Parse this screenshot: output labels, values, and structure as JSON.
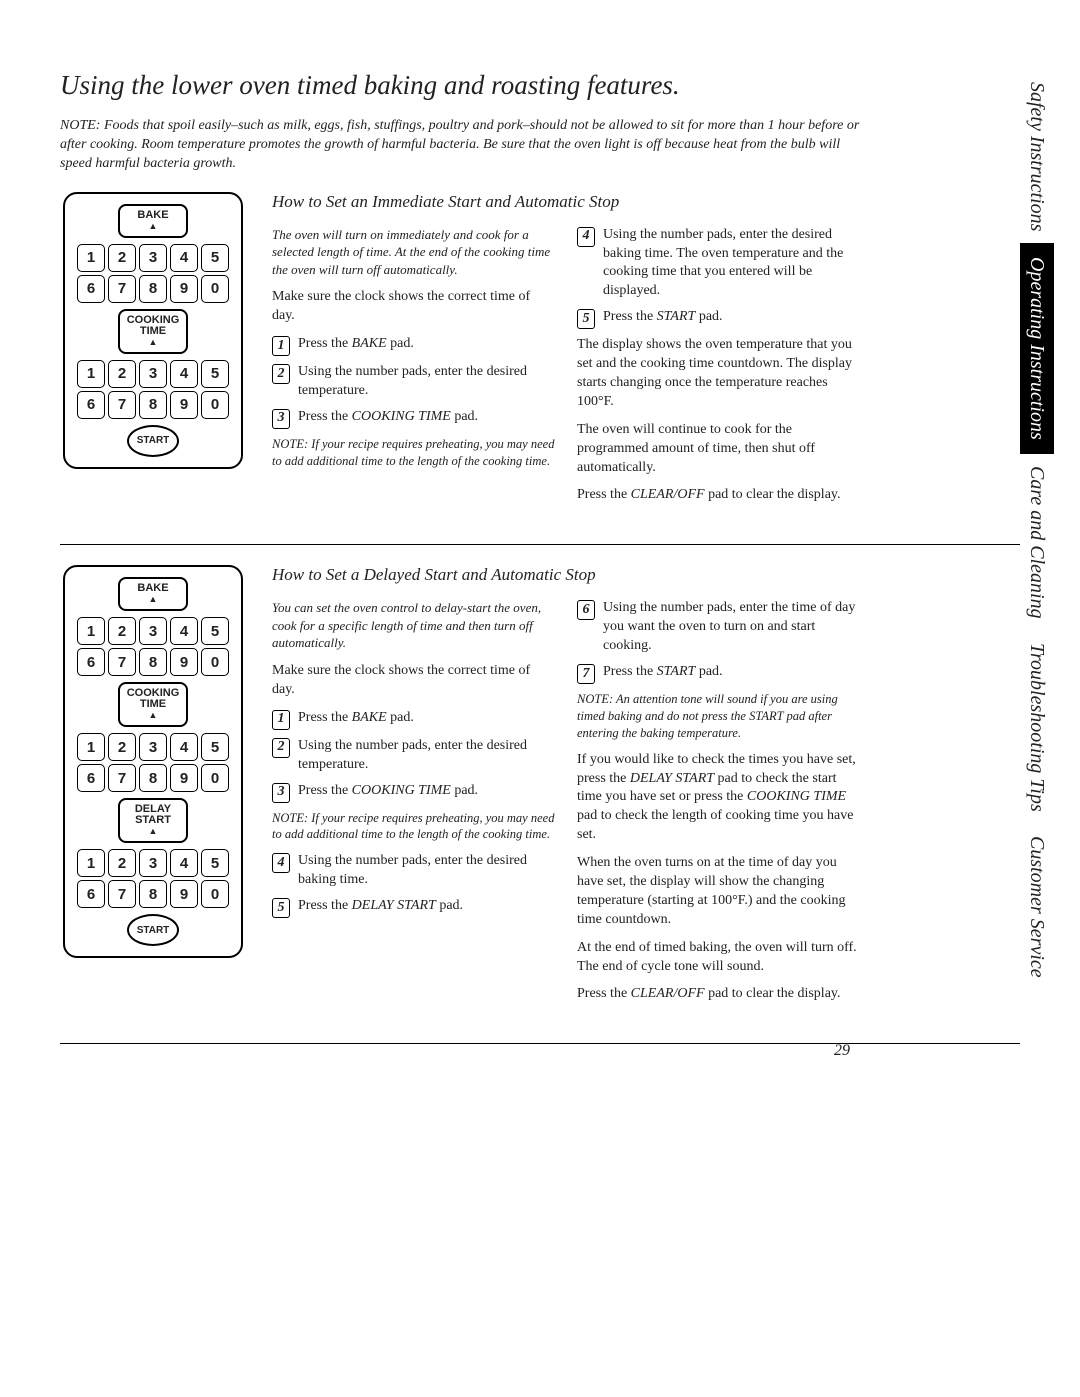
{
  "title": "Using the lower oven timed baking and roasting features.",
  "intro": "NOTE: Foods that spoil easily–such as milk, eggs, fish, stuffings, poultry and pork–should not be allowed to sit for more than 1 hour before or after cooking. Room temperature promotes the growth of harmful bacteria. Be sure that the oven light is off because heat from the bulb will speed harmful bacteria growth.",
  "sidebar": {
    "items": [
      "Safety Instructions",
      "Operating Instructions",
      "Care and Cleaning",
      "Troubleshooting Tips",
      "Customer Service"
    ],
    "active_index": 1
  },
  "keypad": {
    "numbers": [
      "1",
      "2",
      "3",
      "4",
      "5",
      "6",
      "7",
      "8",
      "9",
      "0"
    ],
    "bake": "BAKE",
    "cooking_time": "COOKING TIME",
    "delay_start": "DELAY START",
    "start": "START",
    "up": "▲"
  },
  "sec1": {
    "heading": "How to Set an Immediate Start and Automatic Stop",
    "lead": "The oven will turn on immediately and cook for a selected length of time. At the end of the cooking time the oven will turn off automatically.",
    "clock": "Make sure the clock shows the correct time of day.",
    "s1": "Press the ",
    "s1b": "BAKE",
    "s1c": " pad.",
    "s2": "Using the number pads, enter the desired temperature.",
    "s3": "Press the ",
    "s3b": "COOKING TIME",
    "s3c": " pad.",
    "note1": "NOTE: If your recipe requires preheating, you may need to add additional time to the length of the cooking time.",
    "s4": "Using the number pads, enter the desired baking time. The oven temperature and the cooking time that you entered will be displayed.",
    "s5": "Press the ",
    "s5b": "START",
    "s5c": " pad.",
    "p1": "The display shows the oven temperature that you set and the cooking time countdown. The display starts changing once the temperature reaches 100°F.",
    "p2": "The oven will continue to cook for the programmed amount of time, then shut off automatically.",
    "p3a": "Press the ",
    "p3b": "CLEAR/OFF",
    "p3c": " pad to clear the display."
  },
  "sec2": {
    "heading": "How to Set a Delayed Start and Automatic Stop",
    "lead": "You can set the oven control to delay-start the oven, cook for a specific length of time and then turn off automatically.",
    "clock": "Make sure the clock shows the correct time of day.",
    "s1": "Press the ",
    "s1b": "BAKE",
    "s1c": " pad.",
    "s2": "Using the number pads, enter the desired temperature.",
    "s3": "Press the ",
    "s3b": "COOKING TIME",
    "s3c": " pad.",
    "note1": "NOTE: If your recipe requires preheating, you may need to add additional time to the length of the cooking time.",
    "s4": "Using the number pads, enter the desired baking time.",
    "s5": "Press the ",
    "s5b": "DELAY START",
    "s5c": " pad.",
    "s6": "Using the number pads, enter the time of day you want the oven to turn on and start cooking.",
    "s7": "Press the ",
    "s7b": "START",
    "s7c": " pad.",
    "note2": "NOTE: An attention tone will sound if you are using timed baking and do not press the START pad after entering the baking temperature.",
    "p1a": "If you would like to check the times you have set, press the ",
    "p1b": "DELAY START",
    "p1c": " pad to check the start time you have set or press the ",
    "p1d": "COOKING TIME",
    "p1e": " pad to check the length of cooking time you have set.",
    "p2": "When the oven turns on at the time of day you have set, the display will show the changing temperature (starting at 100°F.) and the cooking time countdown.",
    "p3": "At the end of timed baking, the oven will turn off. The end of cycle tone will sound.",
    "p4a": "Press the ",
    "p4b": "CLEAR/OFF",
    "p4c": " pad to clear the display."
  },
  "page_number": "29"
}
